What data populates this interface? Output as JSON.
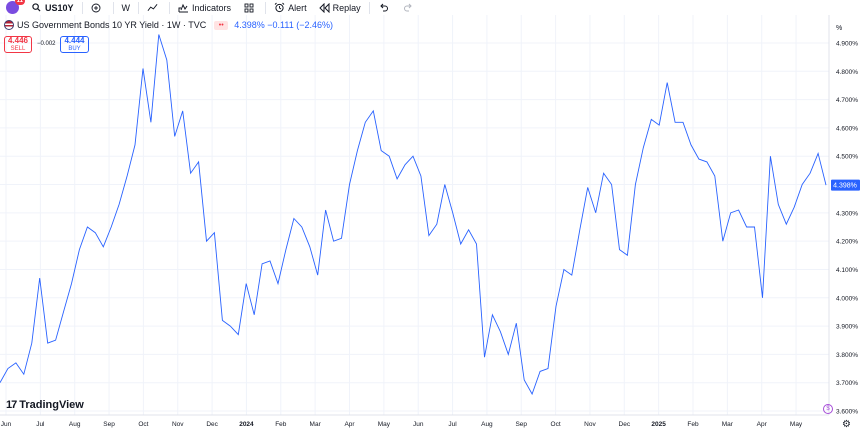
{
  "toolbar": {
    "badge": "11",
    "symbol": "US10Y",
    "interval": "W",
    "indicators": "Indicators",
    "alert": "Alert",
    "replay": "Replay"
  },
  "legend": {
    "title": "US Government Bonds 10 YR Yield · 1W · TVC",
    "eye_icon": "••",
    "values": "4.398% −0.111 (−2.46%)"
  },
  "trade": {
    "sell_price": "4.446",
    "sell_label": "SELL",
    "spread": "−0.002",
    "buy_price": "4.444",
    "buy_label": "BUY"
  },
  "branding": {
    "logo_mark": "17",
    "logo_text": "TradingView"
  },
  "colors": {
    "line": "#2962ff",
    "price_tag": "#2962ff",
    "grid": "#f0f3fa",
    "sell": "#f23645",
    "buy": "#2962ff"
  },
  "chart_data": {
    "type": "line",
    "y_unit": "%",
    "current_value": "4.398%",
    "ylim": [
      3.57,
      4.985
    ],
    "y_ticks": [
      "4.900%",
      "4.800%",
      "4.700%",
      "4.600%",
      "4.500%",
      "4.400%",
      "4.300%",
      "4.200%",
      "4.100%",
      "4.000%",
      "3.900%",
      "3.800%",
      "3.700%",
      "3.600%"
    ],
    "x_ticks": [
      "Jun",
      "Jul",
      "Aug",
      "Sep",
      "Oct",
      "Nov",
      "Dec",
      "2024",
      "Feb",
      "Mar",
      "Apr",
      "May",
      "Jun",
      "Jul",
      "Aug",
      "Sep",
      "Oct",
      "Nov",
      "Dec",
      "2025",
      "Feb",
      "Mar",
      "Apr",
      "May"
    ],
    "x_tick_bold": [
      "2024",
      "2025"
    ],
    "series": [
      {
        "values": [
          3.7,
          3.75,
          3.77,
          3.73,
          3.84,
          4.07,
          3.84,
          3.85,
          3.95,
          4.05,
          4.17,
          4.25,
          4.23,
          4.18,
          4.25,
          4.33,
          4.43,
          4.54,
          4.81,
          4.62,
          4.93,
          4.84,
          4.57,
          4.66,
          4.44,
          4.48,
          4.2,
          4.23,
          3.92,
          3.9,
          3.87,
          4.05,
          3.94,
          4.12,
          4.13,
          4.05,
          4.17,
          4.28,
          4.25,
          4.18,
          4.08,
          4.31,
          4.2,
          4.21,
          4.4,
          4.52,
          4.62,
          4.66,
          4.52,
          4.5,
          4.42,
          4.47,
          4.5,
          4.43,
          4.22,
          4.26,
          4.4,
          4.3,
          4.19,
          4.24,
          4.19,
          3.79,
          3.94,
          3.88,
          3.8,
          3.91,
          3.71,
          3.66,
          3.74,
          3.75,
          3.97,
          4.1,
          4.08,
          4.24,
          4.39,
          4.3,
          4.44,
          4.4,
          4.17,
          4.15,
          4.4,
          4.53,
          4.63,
          4.61,
          4.76,
          4.62,
          4.62,
          4.54,
          4.49,
          4.48,
          4.43,
          4.2,
          4.3,
          4.31,
          4.25,
          4.25,
          4.0,
          4.5,
          4.33,
          4.26,
          4.32,
          4.4,
          4.44,
          4.51,
          4.398
        ]
      }
    ]
  }
}
